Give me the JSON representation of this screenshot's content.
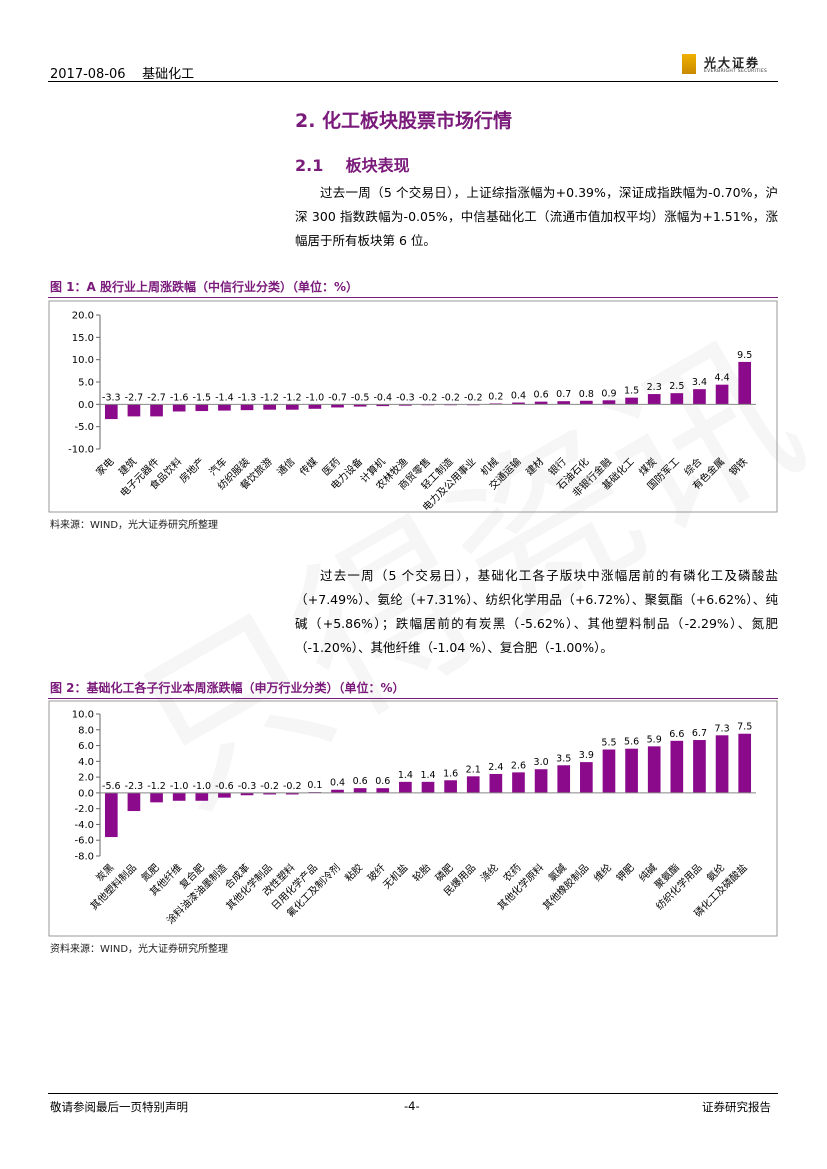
{
  "header": {
    "date_topic": "2017-08-06    基础化工",
    "logo_cn": "光大证券",
    "logo_en": "EVERBRIGHT SECURITIES"
  },
  "section": {
    "title": "2. 化工板块股票市场行情",
    "subtitle": "2.1    板块表现"
  },
  "paragraphs": {
    "p1": "过去一周（5 个交易日），上证综指涨幅为+0.39%，深证成指跌幅为-0.70%，沪深 300 指数跌幅为-0.05%，中信基础化工（流通市值加权平均）涨幅为+1.51%，涨幅居于所有板块第 6 位。",
    "p2": "过去一周（5 个交易日），基础化工各子版块中涨幅居前的有磷化工及磷酸盐（+7.49%）、氨纶（+7.31%）、纺织化学用品（+6.72%）、聚氨酯（+6.62%）、纯碱（+5.86%）；跌幅居前的有炭黑（-5.62%）、其他塑料制品（-2.29%）、氮肥（-1.20%）、其他纤维（-1.04 %）、复合肥（-1.00%）。"
  },
  "figure1": {
    "title": "图 1：A 股行业上周涨跌幅（中信行业分类）（单位：%）",
    "source": "料来源：WIND，光大证券研究所整理"
  },
  "figure2": {
    "title": "图 2：基础化工各子行业本周涨跌幅（申万行业分类）（单位：%）",
    "source": "资料来源：WIND，光大证券研究所整理"
  },
  "chart_data": [
    {
      "type": "bar",
      "title": "图 1：A 股行业上周涨跌幅（中信行业分类）（单位：%）",
      "categories": [
        "家电",
        "建筑",
        "电子元器件",
        "食品饮料",
        "房地产",
        "汽车",
        "纺织服装",
        "餐饮旅游",
        "通信",
        "传媒",
        "医药",
        "电力设备",
        "计算机",
        "农林牧渔",
        "商贸零售",
        "轻工制造",
        "电力及公用事业",
        "机械",
        "交通运输",
        "建材",
        "银行",
        "石油石化",
        "非银行金融",
        "基础化工",
        "煤炭",
        "国防军工",
        "综合",
        "有色金属",
        "钢铁"
      ],
      "values": [
        -3.3,
        -2.7,
        -2.7,
        -1.6,
        -1.5,
        -1.4,
        -1.3,
        -1.2,
        -1.2,
        -1.0,
        -0.7,
        -0.5,
        -0.4,
        -0.3,
        -0.2,
        -0.2,
        -0.2,
        0.2,
        0.4,
        0.6,
        0.7,
        0.8,
        0.9,
        1.5,
        2.3,
        2.5,
        3.4,
        4.4,
        9.5
      ],
      "labels": [
        "-3.3",
        "-2.7",
        "-2.7",
        "-1.6",
        "-1.5",
        "-1.4",
        "-1.3",
        "-1.2",
        "-1.2",
        "-1.0",
        "-0.7",
        "-0.5",
        "-0.4",
        "-0.3",
        "-0.2",
        "-0.2",
        "-0.2",
        "0.2",
        "0.4",
        "0.6",
        "0.7",
        "0.8",
        "0.9",
        "1.5",
        "2.3",
        "2.5",
        "3.4",
        "4.4",
        "9.5"
      ],
      "yticks": [
        "20.0",
        "15.0",
        "10.0",
        "5.0",
        "0.0",
        "-5.0",
        "-10.0"
      ],
      "ylim": [
        -10,
        20
      ],
      "color": "#8b0a8b"
    },
    {
      "type": "bar",
      "title": "图 2：基础化工各子行业本周涨跌幅（申万行业分类）（单位：%）",
      "categories": [
        "炭黑",
        "其他塑料制品",
        "氮肥",
        "其他纤维",
        "复合肥",
        "涂料油漆油墨制造",
        "合成革",
        "其他化学制品",
        "改性塑料",
        "日用化学产品",
        "氟化工及制冷剂",
        "粘胶",
        "玻纤",
        "无机盐",
        "轮胎",
        "磷肥",
        "民爆用品",
        "涤纶",
        "农药",
        "其他化学原料",
        "氯碱",
        "其他橡胶制品",
        "维纶",
        "钾肥",
        "纯碱",
        "聚氨酯",
        "纺织化学用品",
        "氨纶",
        "磷化工及磷酸盐"
      ],
      "values": [
        -5.6,
        -2.3,
        -1.2,
        -1.0,
        -1.0,
        -0.6,
        -0.3,
        -0.2,
        -0.2,
        0.1,
        0.4,
        0.6,
        0.6,
        1.4,
        1.4,
        1.6,
        2.1,
        2.4,
        2.6,
        3.0,
        3.5,
        3.9,
        5.5,
        5.6,
        5.9,
        6.6,
        6.7,
        7.3,
        7.5
      ],
      "labels": [
        "-5.6",
        "-2.3",
        "-1.2",
        "-1.0",
        "-1.0",
        "-0.6",
        "-0.3",
        "-0.2",
        "-0.2",
        "0.1",
        "0.4",
        "0.6",
        "0.6",
        "1.4",
        "1.4",
        "1.6",
        "2.1",
        "2.4",
        "2.6",
        "3.0",
        "3.5",
        "3.9",
        "5.5",
        "5.6",
        "5.9",
        "6.6",
        "6.7",
        "7.3",
        "7.5"
      ],
      "yticks": [
        "10.0",
        "8.0",
        "6.0",
        "4.0",
        "2.0",
        "0.0",
        "-2.0",
        "-4.0",
        "-6.0",
        "-8.0"
      ],
      "ylim": [
        -8,
        10
      ],
      "color": "#8b0a8b"
    }
  ],
  "footer": {
    "left": "敬请参阅最后一页特别声明",
    "center": "-4-",
    "right": "证券研究报告"
  },
  "watermark": "只得瓷讯"
}
